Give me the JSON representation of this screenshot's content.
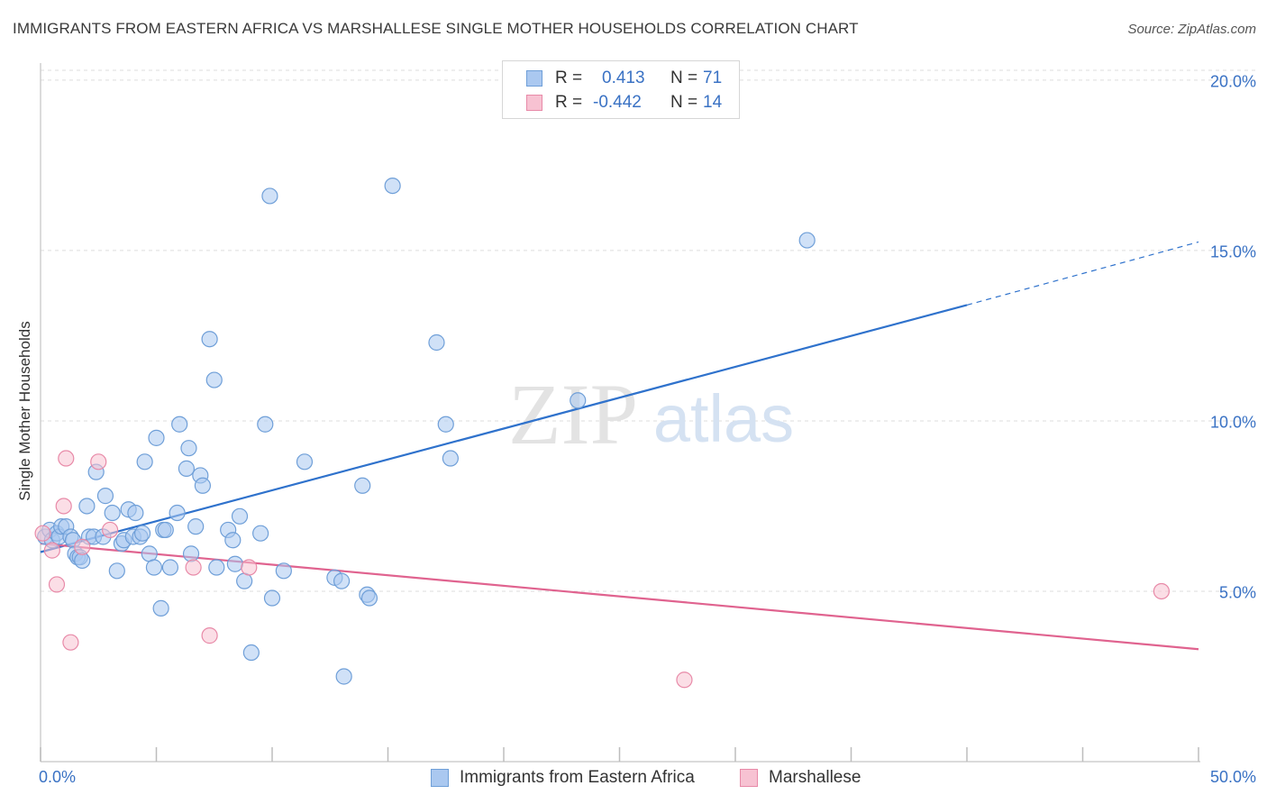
{
  "title": "IMMIGRANTS FROM EASTERN AFRICA VS MARSHALLESE SINGLE MOTHER HOUSEHOLDS CORRELATION CHART",
  "source": "Source: ZipAtlas.com",
  "watermark": {
    "zip": "ZIP",
    "atlas": "atlas"
  },
  "legend": {
    "rows": [
      {
        "r_label": "R =",
        "r_value": "0.413",
        "n_label": "N =",
        "n_value": "71"
      },
      {
        "r_label": "R =",
        "r_value": "-0.442",
        "n_label": "N =",
        "n_value": "14"
      }
    ]
  },
  "colors": {
    "blue_fill": "#aac8f0",
    "blue_stroke": "#6f9fd8",
    "blue_line": "#2f72cc",
    "pink_fill": "#f7c2d2",
    "pink_stroke": "#e88aa8",
    "pink_line": "#e0638f",
    "tick_text": "#3a72c4",
    "grid": "#dddddd"
  },
  "chart_data": {
    "type": "scatter",
    "title": "IMMIGRANTS FROM EASTERN AFRICA VS MARSHALLESE SINGLE MOTHER HOUSEHOLDS CORRELATION CHART",
    "xlabel": "",
    "ylabel": "Single Mother Households",
    "xlim": [
      0,
      50
    ],
    "ylim": [
      0,
      20.5
    ],
    "x_tick_labels": [
      "0.0%",
      "50.0%"
    ],
    "y_ticks": [
      5,
      10,
      15,
      20
    ],
    "y_tick_labels": [
      "5.0%",
      "10.0%",
      "15.0%",
      "20.0%"
    ],
    "grid": true,
    "legend_position": "top-center",
    "series": [
      {
        "name": "Immigrants from Eastern Africa",
        "color": "#aac8f0",
        "trend": {
          "x_start": 0,
          "y_start": 6.15,
          "x_solid_end": 40,
          "y_solid_end": 13.4,
          "x_dash_end": 50,
          "y_dash_end": 15.25
        },
        "points": [
          [
            0.2,
            6.6
          ],
          [
            0.4,
            6.8
          ],
          [
            0.5,
            6.5
          ],
          [
            0.7,
            6.7
          ],
          [
            0.8,
            6.6
          ],
          [
            0.9,
            6.9
          ],
          [
            1.1,
            6.9
          ],
          [
            1.3,
            6.6
          ],
          [
            1.4,
            6.5
          ],
          [
            1.5,
            6.1
          ],
          [
            1.6,
            6.0
          ],
          [
            1.7,
            6.0
          ],
          [
            1.8,
            5.9
          ],
          [
            2.0,
            7.5
          ],
          [
            2.1,
            6.6
          ],
          [
            2.3,
            6.6
          ],
          [
            2.4,
            8.5
          ],
          [
            2.7,
            6.6
          ],
          [
            2.8,
            7.8
          ],
          [
            3.1,
            7.3
          ],
          [
            3.3,
            5.6
          ],
          [
            3.5,
            6.4
          ],
          [
            3.6,
            6.5
          ],
          [
            3.8,
            7.4
          ],
          [
            4.0,
            6.6
          ],
          [
            4.1,
            7.3
          ],
          [
            4.3,
            6.6
          ],
          [
            4.4,
            6.7
          ],
          [
            4.5,
            8.8
          ],
          [
            4.7,
            6.1
          ],
          [
            4.9,
            5.7
          ],
          [
            5.0,
            9.5
          ],
          [
            5.2,
            4.5
          ],
          [
            5.3,
            6.8
          ],
          [
            5.4,
            6.8
          ],
          [
            5.6,
            5.7
          ],
          [
            5.9,
            7.3
          ],
          [
            6.0,
            9.9
          ],
          [
            6.3,
            8.6
          ],
          [
            6.4,
            9.2
          ],
          [
            6.5,
            6.1
          ],
          [
            6.7,
            6.9
          ],
          [
            6.9,
            8.4
          ],
          [
            7.0,
            8.1
          ],
          [
            7.3,
            12.4
          ],
          [
            7.5,
            11.2
          ],
          [
            7.6,
            5.7
          ],
          [
            8.1,
            6.8
          ],
          [
            8.3,
            6.5
          ],
          [
            8.4,
            5.8
          ],
          [
            8.6,
            7.2
          ],
          [
            8.8,
            5.3
          ],
          [
            9.5,
            6.7
          ],
          [
            9.7,
            9.9
          ],
          [
            9.9,
            16.6
          ],
          [
            10.0,
            4.8
          ],
          [
            10.5,
            5.6
          ],
          [
            11.4,
            8.8
          ],
          [
            12.7,
            5.4
          ],
          [
            13.0,
            5.3
          ],
          [
            13.1,
            2.5
          ],
          [
            13.9,
            8.1
          ],
          [
            14.1,
            4.9
          ],
          [
            14.2,
            4.8
          ],
          [
            15.2,
            16.9
          ],
          [
            17.1,
            12.3
          ],
          [
            17.5,
            9.9
          ],
          [
            17.7,
            8.9
          ],
          [
            23.2,
            10.6
          ],
          [
            33.1,
            15.3
          ],
          [
            9.1,
            3.2
          ]
        ]
      },
      {
        "name": "Marshallese",
        "color": "#f7c2d2",
        "trend": {
          "x_start": 0,
          "y_start": 6.4,
          "x_solid_end": 50,
          "y_solid_end": 3.3
        },
        "points": [
          [
            0.1,
            6.7
          ],
          [
            0.5,
            6.2
          ],
          [
            0.7,
            5.2
          ],
          [
            1.0,
            7.5
          ],
          [
            1.1,
            8.9
          ],
          [
            1.3,
            3.5
          ],
          [
            1.8,
            6.3
          ],
          [
            2.5,
            8.8
          ],
          [
            3.0,
            6.8
          ],
          [
            6.6,
            5.7
          ],
          [
            7.3,
            3.7
          ],
          [
            9.0,
            5.7
          ],
          [
            27.8,
            2.4
          ],
          [
            48.4,
            5.0
          ]
        ]
      }
    ]
  },
  "bottom_legend": [
    {
      "label": "Immigrants from Eastern Africa"
    },
    {
      "label": "Marshallese"
    }
  ]
}
